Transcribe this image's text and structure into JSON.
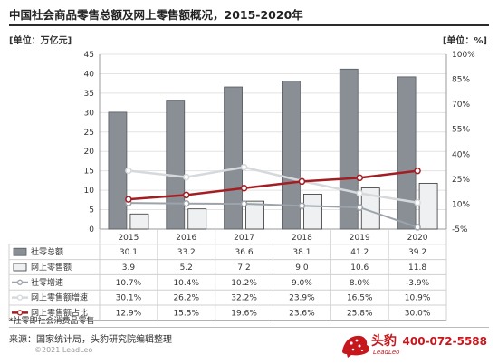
{
  "title": "中国社会商品零售总额及网上零售额概况，2015-2020年",
  "unit_left": "[单位：万亿元]",
  "unit_right": "[单位：%]",
  "footnote": "*社零即社会消费品零售",
  "source": "来源：国家统计局，头豹研究院编辑整理",
  "copyright": "©2021 LeadLeo",
  "logo_text": "头豹",
  "logo_sub": "LeadLeo",
  "phone": "400-072-5588",
  "colors": {
    "bar_total": "#8a8f96",
    "bar_online": "#eef0f2",
    "line_growth": "#9da3aa",
    "line_online_growth": "#d6d9dc",
    "line_share": "#a31e22",
    "brand": "#c8161d"
  },
  "chart_data": {
    "type": "bar",
    "categories": [
      "2015",
      "2016",
      "2017",
      "2018",
      "2019",
      "2020"
    ],
    "left_axis": {
      "ylim": [
        0,
        45
      ],
      "ticks": [
        "0",
        "5",
        "10",
        "15",
        "20",
        "25",
        "30",
        "35",
        "40",
        "45"
      ]
    },
    "right_axis": {
      "ylim": [
        -5,
        100
      ],
      "ticks": [
        "-5%",
        "10%",
        "25%",
        "40%",
        "55%",
        "70%",
        "85%",
        "100%"
      ]
    },
    "grid": true,
    "series": [
      {
        "name": "社零总额",
        "type": "bar",
        "axis": "left",
        "values": [
          30.1,
          33.2,
          36.6,
          38.1,
          41.2,
          39.2
        ],
        "labels": [
          "30.1",
          "33.2",
          "36.6",
          "38.1",
          "41.2",
          "39.2"
        ]
      },
      {
        "name": "网上零售额",
        "type": "bar",
        "axis": "left",
        "values": [
          3.9,
          5.2,
          7.2,
          9.0,
          10.6,
          11.8
        ],
        "labels": [
          "3.9",
          "5.2",
          "7.2",
          "9.0",
          "10.6",
          "11.8"
        ]
      },
      {
        "name": "社零增速",
        "type": "line",
        "axis": "right",
        "values": [
          10.7,
          10.4,
          10.2,
          9.0,
          8.0,
          -3.9
        ],
        "labels": [
          "10.7%",
          "10.4%",
          "10.2%",
          "9.0%",
          "8.0%",
          "-3.9%"
        ]
      },
      {
        "name": "网上零售额增速",
        "type": "line",
        "axis": "right",
        "values": [
          30.1,
          26.2,
          32.2,
          23.9,
          16.5,
          10.9
        ],
        "labels": [
          "30.1%",
          "26.2%",
          "32.2%",
          "23.9%",
          "16.5%",
          "10.9%"
        ]
      },
      {
        "name": "网上零售额占比",
        "type": "line",
        "axis": "right",
        "values": [
          12.9,
          15.5,
          19.6,
          23.6,
          25.8,
          30.0
        ],
        "labels": [
          "12.9%",
          "15.5%",
          "19.6%",
          "23.6%",
          "25.8%",
          "30.0%"
        ]
      }
    ]
  }
}
